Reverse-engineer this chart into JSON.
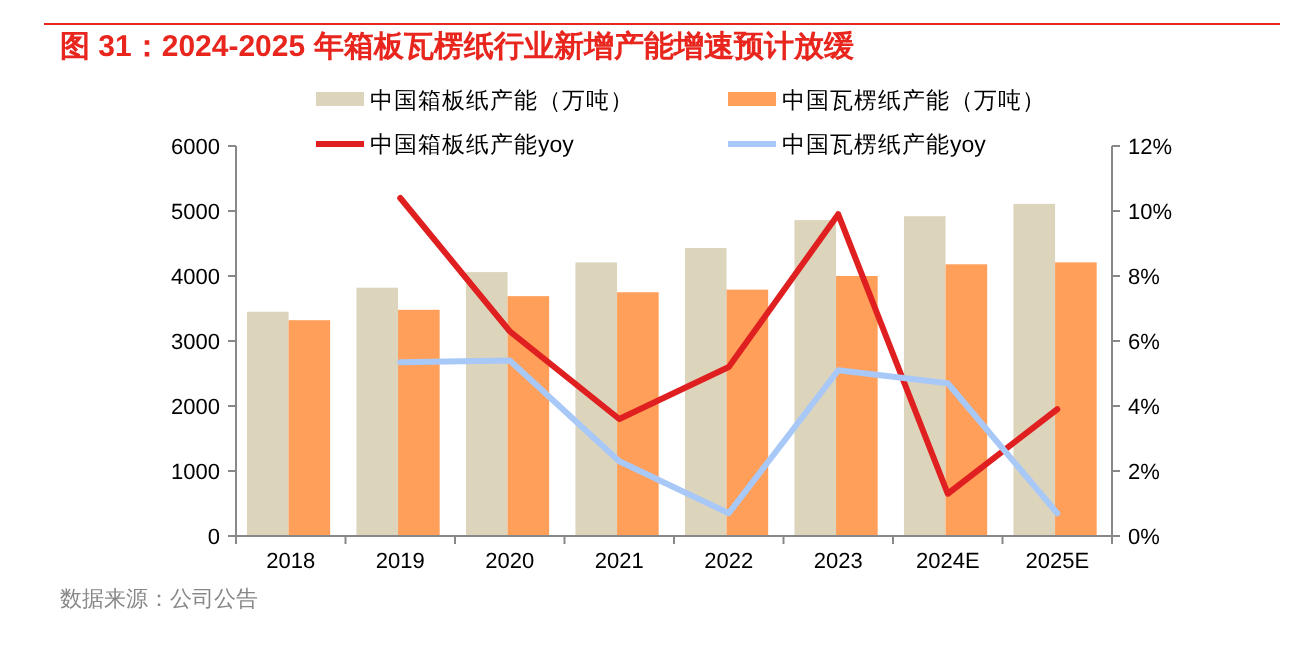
{
  "chart_data": {
    "type": "bar",
    "title": "图 31：2024-2025 年箱板瓦楞纸行业新增产能增速预计放缓",
    "categories": [
      "2018",
      "2019",
      "2020",
      "2021",
      "2022",
      "2023",
      "2024E",
      "2025E"
    ],
    "series": [
      {
        "name": "中国箱板纸产能（万吨）",
        "color": "#ddd4bc",
        "values": [
          3450,
          3820,
          4060,
          4210,
          4430,
          4860,
          4920,
          5110
        ]
      },
      {
        "name": "中国瓦楞纸产能（万吨）",
        "color": "#ff9f5a",
        "values": [
          3320,
          3480,
          3690,
          3750,
          3790,
          4000,
          4180,
          4210
        ]
      },
      {
        "name": "中国箱板纸产能yoy",
        "type": "line",
        "axis": "y2",
        "color": "#e02020",
        "values": [
          null,
          10.4,
          6.3,
          3.6,
          5.2,
          9.9,
          1.3,
          3.9
        ]
      },
      {
        "name": "中国瓦楞纸产能yoy",
        "type": "line",
        "axis": "y2",
        "color": "#a8c8f8",
        "values": [
          null,
          5.35,
          5.4,
          2.3,
          0.7,
          5.1,
          4.7,
          0.7
        ]
      }
    ],
    "ylim": [
      0,
      6000
    ],
    "yticks": [
      0,
      1000,
      2000,
      3000,
      4000,
      5000,
      6000
    ],
    "y2lim": [
      0,
      12
    ],
    "y2ticks": [
      {
        "value": 0,
        "label": "0%"
      },
      {
        "value": 2,
        "label": "2%"
      },
      {
        "value": 4,
        "label": "4%"
      },
      {
        "value": 6,
        "label": "6%"
      },
      {
        "value": 8,
        "label": "8%"
      },
      {
        "value": 10,
        "label": "10%"
      },
      {
        "value": 12,
        "label": "12%"
      }
    ],
    "legend": "top",
    "grid": false,
    "annotations": [
      "数据来源：公司公告"
    ]
  }
}
